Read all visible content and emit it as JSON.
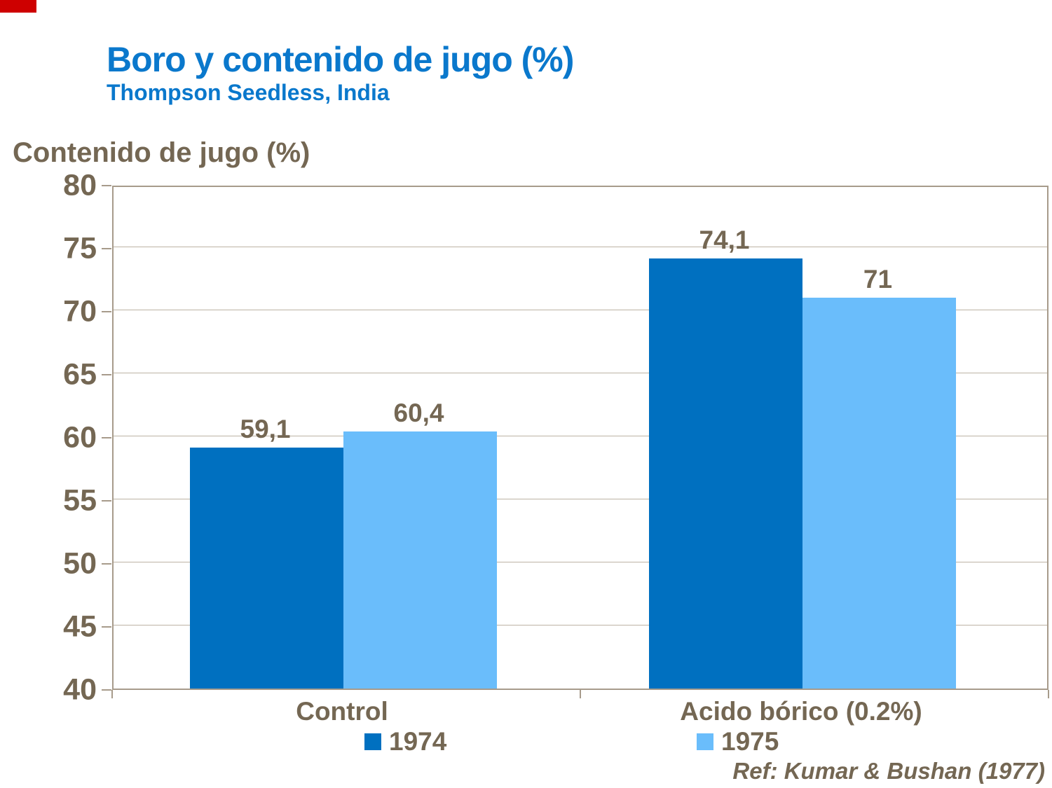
{
  "slide": {
    "title": "Boro y contenido de jugo (%)",
    "subtitle": "Thompson Seedless, India",
    "reference": "Ref: Kumar & Bushan (1977)",
    "title_color": "#0A78CC",
    "accent_red": "#CE0000"
  },
  "chart_data": {
    "type": "bar",
    "title": "Boro y contenido de jugo (%)",
    "subtitle": "Thompson Seedless, India",
    "ylabel": "Contenido de jugo (%)",
    "xlabel": "",
    "categories": [
      "Control",
      "Acido bórico (0.2%)"
    ],
    "series": [
      {
        "name": "1974",
        "color": "#0070C0",
        "values": [
          59.1,
          74.1
        ],
        "labels": [
          "59,1",
          "74,1"
        ]
      },
      {
        "name": "1975",
        "color": "#6ABDFB",
        "values": [
          60.4,
          71.0
        ],
        "labels": [
          "60,4",
          "71"
        ]
      }
    ],
    "ylim": [
      40,
      80
    ],
    "ytick_step": 5,
    "grid": true,
    "legend_position": "bottom",
    "text_color": "#746753",
    "grid_color": "#BCB2A4",
    "axis_color": "#A79B8B"
  }
}
